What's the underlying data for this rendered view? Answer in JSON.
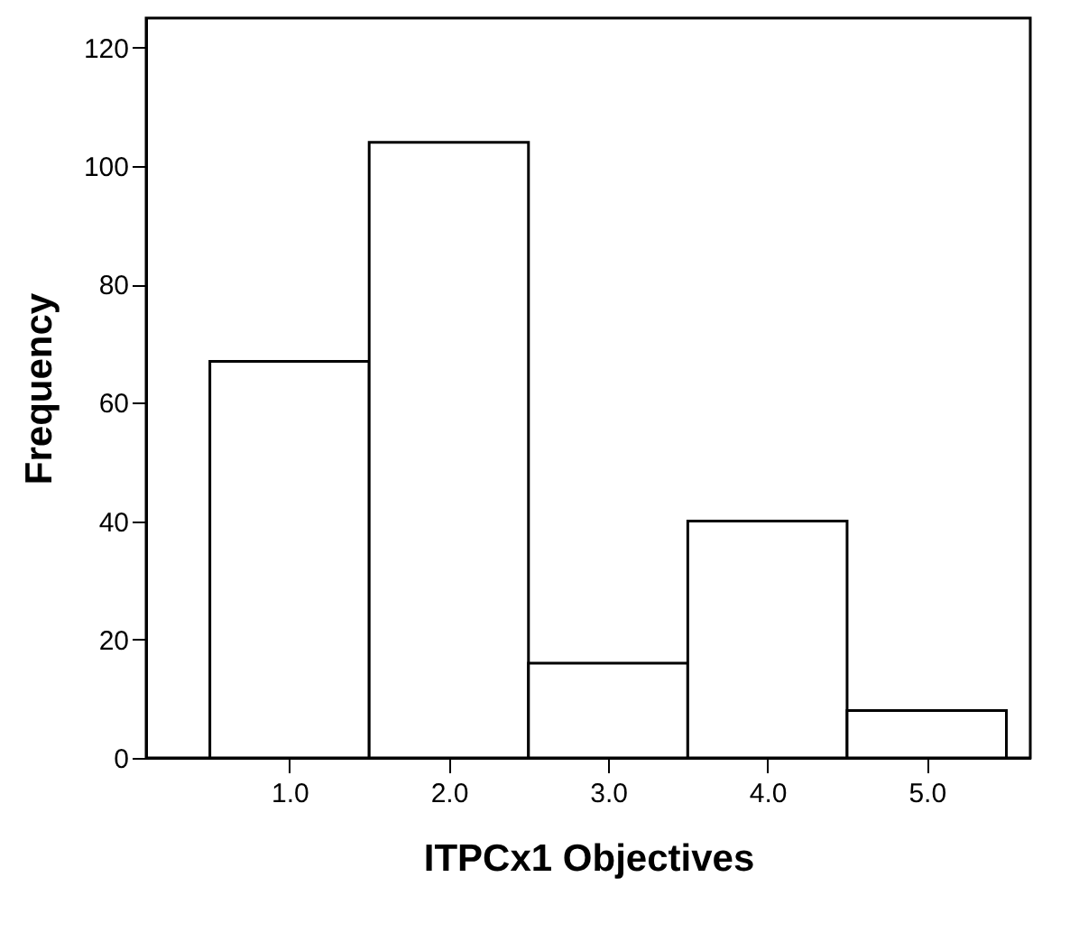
{
  "chart_data": {
    "type": "histogram",
    "xlabel": "ITPCx1 Objectives",
    "ylabel": "Frequency",
    "bins": [
      0.5,
      1.5,
      2.5,
      3.5,
      4.5,
      5.5
    ],
    "values": [
      67,
      104,
      16,
      40,
      8
    ],
    "color": "#ffffff",
    "xlim": [
      0.1,
      5.65
    ],
    "ylim": [
      0,
      125
    ],
    "xticks": [
      {
        "value": 1,
        "label": "1.0"
      },
      {
        "value": 2,
        "label": "2.0"
      },
      {
        "value": 3,
        "label": "3.0"
      },
      {
        "value": 4,
        "label": "4.0"
      },
      {
        "value": 5,
        "label": "5.0"
      }
    ],
    "yticks": [
      0,
      20,
      40,
      60,
      80,
      100,
      120
    ],
    "grid": false
  }
}
